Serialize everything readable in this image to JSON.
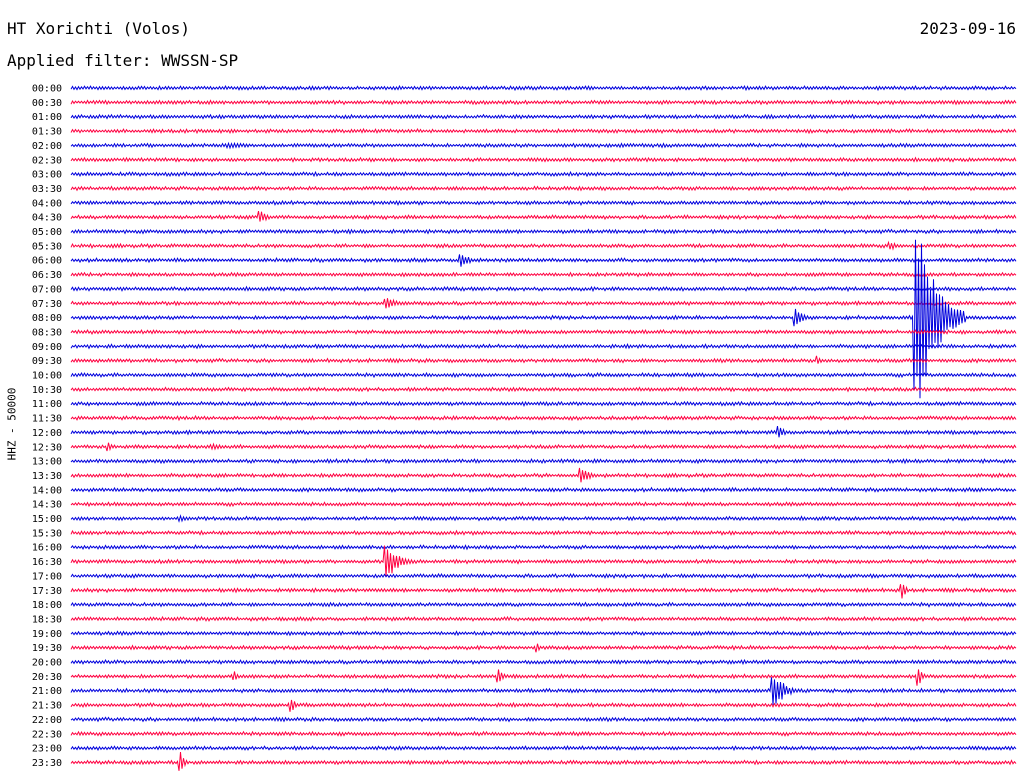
{
  "header": {
    "station": "HT Xorichti (Volos)",
    "date": "2023-09-16",
    "filter": "Applied filter: WWSSN-SP"
  },
  "channel_label": "HHZ - 50000",
  "colors": {
    "even_row": "#0000dd",
    "odd_row": "#ff0040",
    "background": "#ffffff"
  },
  "chart_data": {
    "type": "helicorder",
    "row_labels": [
      "00:00",
      "00:30",
      "01:00",
      "01:30",
      "02:00",
      "02:30",
      "03:00",
      "03:30",
      "04:00",
      "04:30",
      "05:00",
      "05:30",
      "06:00",
      "06:30",
      "07:00",
      "07:30",
      "08:00",
      "08:30",
      "09:00",
      "09:30",
      "10:00",
      "10:30",
      "11:00",
      "11:30",
      "12:00",
      "12:30",
      "13:00",
      "13:30",
      "14:00",
      "14:30",
      "15:00",
      "15:30",
      "16:00",
      "16:30",
      "17:00",
      "17:30",
      "18:00",
      "18:30",
      "19:00",
      "19:30",
      "20:00",
      "20:30",
      "21:00",
      "21:30",
      "22:00",
      "22:30",
      "23:00",
      "23:30"
    ],
    "row_duration_minutes": 30,
    "events": [
      {
        "row": "02:00",
        "minute": 5,
        "amplitude": 0.2,
        "duration": 2.5,
        "color_row": "even"
      },
      {
        "row": "02:00",
        "minute": 17.5,
        "amplitude": 0.15,
        "duration": 1.5,
        "color_row": "even"
      },
      {
        "row": "04:30",
        "minute": 6,
        "amplitude": 0.5,
        "duration": 0.6,
        "color_row": "odd"
      },
      {
        "row": "05:30",
        "minute": 26,
        "amplitude": 0.3,
        "duration": 0.8,
        "color_row": "odd"
      },
      {
        "row": "06:00",
        "minute": 12.4,
        "amplitude": 0.6,
        "duration": 0.6,
        "color_row": "even"
      },
      {
        "row": "07:30",
        "minute": 10,
        "amplitude": 0.4,
        "duration": 1.2,
        "color_row": "odd"
      },
      {
        "row": "08:00",
        "minute": 23,
        "amplitude": 0.7,
        "duration": 0.6,
        "color_row": "even"
      },
      {
        "row": "08:00",
        "minute": 26.8,
        "amplitude": 7.5,
        "duration": 1.6,
        "color_row": "even"
      },
      {
        "row": "09:30",
        "minute": 23.7,
        "amplitude": 0.35,
        "duration": 0.3,
        "color_row": "odd"
      },
      {
        "row": "12:00",
        "minute": 22.5,
        "amplitude": 0.45,
        "duration": 0.4,
        "color_row": "even"
      },
      {
        "row": "12:30",
        "minute": 1.2,
        "amplitude": 0.4,
        "duration": 0.3,
        "color_row": "odd"
      },
      {
        "row": "12:30",
        "minute": 4.5,
        "amplitude": 0.2,
        "duration": 1.2,
        "color_row": "odd"
      },
      {
        "row": "13:30",
        "minute": 16.2,
        "amplitude": 0.55,
        "duration": 0.8,
        "color_row": "odd"
      },
      {
        "row": "15:00",
        "minute": 3.5,
        "amplitude": 0.2,
        "duration": 1.3,
        "color_row": "even"
      },
      {
        "row": "16:30",
        "minute": 10,
        "amplitude": 1.5,
        "duration": 0.9,
        "color_row": "odd"
      },
      {
        "row": "17:30",
        "minute": 26.4,
        "amplitude": 0.6,
        "duration": 0.3,
        "color_row": "odd"
      },
      {
        "row": "19:30",
        "minute": 14.8,
        "amplitude": 0.35,
        "duration": 0.2,
        "color_row": "odd"
      },
      {
        "row": "20:30",
        "minute": 5.2,
        "amplitude": 0.4,
        "duration": 0.3,
        "color_row": "odd"
      },
      {
        "row": "20:30",
        "minute": 13.6,
        "amplitude": 0.6,
        "duration": 0.3,
        "color_row": "odd"
      },
      {
        "row": "20:30",
        "minute": 26.9,
        "amplitude": 0.8,
        "duration": 0.3,
        "color_row": "odd"
      },
      {
        "row": "21:00",
        "minute": 22.3,
        "amplitude": 1.4,
        "duration": 0.9,
        "color_row": "even"
      },
      {
        "row": "21:30",
        "minute": 7,
        "amplitude": 0.5,
        "duration": 0.4,
        "color_row": "odd"
      },
      {
        "row": "23:30",
        "minute": 3.5,
        "amplitude": 0.8,
        "duration": 0.3,
        "color_row": "odd"
      }
    ]
  }
}
